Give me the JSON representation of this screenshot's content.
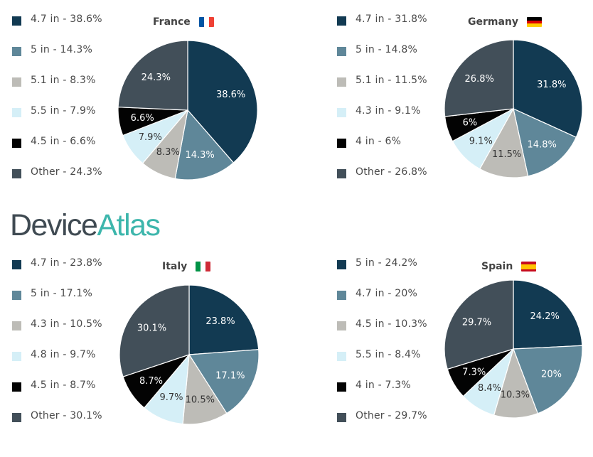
{
  "brand": {
    "part1": "Device",
    "part2": "Atlas"
  },
  "colors": {
    "s0": "#123a52",
    "s1": "#5f8799",
    "s2": "#bdbcb7",
    "s3": "#d5eff7",
    "s4": "#030303",
    "s5": "#424f59"
  },
  "chart_data": [
    {
      "type": "pie",
      "title": "France",
      "flag": [
        "#0055a4",
        "#ffffff",
        "#ef4135"
      ],
      "flag_orientation": "vertical",
      "slices": [
        {
          "label": "4.7 in",
          "value": 38.6,
          "legend": "4.7 in - 38.6%",
          "data_label": "38.6%",
          "color": "s0"
        },
        {
          "label": "5 in",
          "value": 14.3,
          "legend": "5 in - 14.3%",
          "data_label": "14.3%",
          "color": "s1"
        },
        {
          "label": "5.1 in",
          "value": 8.3,
          "legend": "5.1 in - 8.3%",
          "data_label": "8.3%",
          "color": "s2"
        },
        {
          "label": "5.5 in",
          "value": 7.9,
          "legend": "5.5 in - 7.9%",
          "data_label": "7.9%",
          "color": "s3"
        },
        {
          "label": "4.5 in",
          "value": 6.6,
          "legend": "4.5 in - 6.6%",
          "data_label": "6.6%",
          "color": "s4"
        },
        {
          "label": "Other",
          "value": 24.3,
          "legend": "Other - 24.3%",
          "data_label": "24.3%",
          "color": "s5"
        }
      ]
    },
    {
      "type": "pie",
      "title": "Germany",
      "flag": [
        "#000000",
        "#dd0000",
        "#ffce00"
      ],
      "flag_orientation": "horizontal",
      "slices": [
        {
          "label": "4.7 in",
          "value": 31.8,
          "legend": "4.7 in - 31.8%",
          "data_label": "31.8%",
          "color": "s0"
        },
        {
          "label": "5 in",
          "value": 14.8,
          "legend": "5 in - 14.8%",
          "data_label": "14.8%",
          "color": "s1"
        },
        {
          "label": "5.1 in",
          "value": 11.5,
          "legend": "5.1 in - 11.5%",
          "data_label": "11.5%",
          "color": "s2"
        },
        {
          "label": "4.3 in",
          "value": 9.1,
          "legend": "4.3 in - 9.1%",
          "data_label": "9.1%",
          "color": "s3"
        },
        {
          "label": "4 in",
          "value": 6,
          "legend": "4 in - 6%",
          "data_label": "6%",
          "color": "s4"
        },
        {
          "label": "Other",
          "value": 26.8,
          "legend": "Other - 26.8%",
          "data_label": "26.8%",
          "color": "s5"
        }
      ]
    },
    {
      "type": "pie",
      "title": "Italy",
      "flag": [
        "#009246",
        "#ffffff",
        "#ce2b37"
      ],
      "flag_orientation": "vertical",
      "slices": [
        {
          "label": "4.7 in",
          "value": 23.8,
          "legend": "4.7 in - 23.8%",
          "data_label": "23.8%",
          "color": "s0"
        },
        {
          "label": "5 in",
          "value": 17.1,
          "legend": "5 in - 17.1%",
          "data_label": "17.1%",
          "color": "s1"
        },
        {
          "label": "4.3 in",
          "value": 10.5,
          "legend": "4.3 in - 10.5%",
          "data_label": "10.5%",
          "color": "s2"
        },
        {
          "label": "4.8 in",
          "value": 9.7,
          "legend": "4.8 in - 9.7%",
          "data_label": "9.7%",
          "color": "s3"
        },
        {
          "label": "4.5 in",
          "value": 8.7,
          "legend": "4.5 in - 8.7%",
          "data_label": "8.7%",
          "color": "s4"
        },
        {
          "label": "Other",
          "value": 30.1,
          "legend": "Other - 30.1%",
          "data_label": "30.1%",
          "color": "s5"
        }
      ]
    },
    {
      "type": "pie",
      "title": "Spain",
      "flag": [
        "#c60b1e",
        "#ffc400",
        "#c60b1e"
      ],
      "flag_orientation": "horizontal",
      "slices": [
        {
          "label": "5 in",
          "value": 24.2,
          "legend": "5 in - 24.2%",
          "data_label": "24.2%",
          "color": "s0"
        },
        {
          "label": "4.7 in",
          "value": 20,
          "legend": "4.7 in - 20%",
          "data_label": "20%",
          "color": "s1"
        },
        {
          "label": "4.5 in",
          "value": 10.3,
          "legend": "4.5 in - 10.3%",
          "data_label": "10.3%",
          "color": "s2"
        },
        {
          "label": "5.5 in",
          "value": 8.4,
          "legend": "5.5 in - 8.4%",
          "data_label": "8.4%",
          "color": "s3"
        },
        {
          "label": "4 in",
          "value": 7.3,
          "legend": "4 in - 7.3%",
          "data_label": "7.3%",
          "color": "s4"
        },
        {
          "label": "Other",
          "value": 29.7,
          "legend": "Other - 29.7%",
          "data_label": "29.7%",
          "color": "s5"
        }
      ]
    }
  ]
}
